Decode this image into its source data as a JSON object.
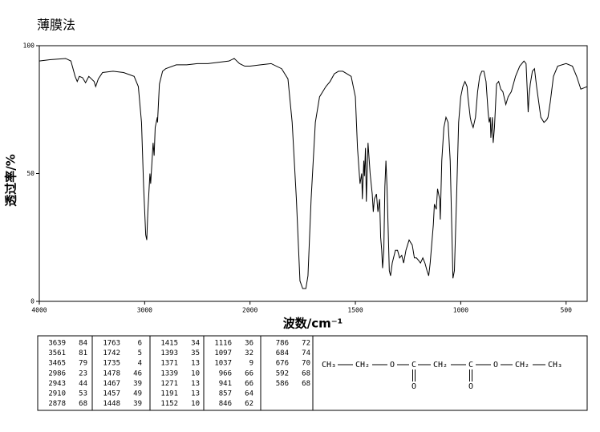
{
  "chart_data": {
    "type": "line",
    "title": "薄膜法",
    "xlabel": "波数/cm⁻¹",
    "ylabel": "透过率/%",
    "x": [
      4000,
      3900,
      3750,
      3700,
      3660,
      3640,
      3620,
      3590,
      3561,
      3530,
      3480,
      3465,
      3440,
      3400,
      3300,
      3200,
      3100,
      3060,
      3030,
      3010,
      2990,
      2980,
      2970,
      2950,
      2943,
      2930,
      2920,
      2910,
      2900,
      2880,
      2878,
      2860,
      2830,
      2800,
      2700,
      2600,
      2500,
      2400,
      2300,
      2200,
      2150,
      2100,
      2050,
      2000,
      1950,
      1900,
      1850,
      1820,
      1800,
      1780,
      1763,
      1750,
      1742,
      1735,
      1725,
      1710,
      1690,
      1670,
      1640,
      1620,
      1600,
      1580,
      1560,
      1540,
      1520,
      1500,
      1490,
      1478,
      1470,
      1467,
      1460,
      1457,
      1452,
      1448,
      1440,
      1430,
      1420,
      1415,
      1410,
      1400,
      1393,
      1385,
      1380,
      1375,
      1371,
      1365,
      1360,
      1355,
      1350,
      1345,
      1339,
      1333,
      1325,
      1310,
      1300,
      1290,
      1280,
      1271,
      1260,
      1245,
      1230,
      1220,
      1210,
      1200,
      1191,
      1180,
      1170,
      1160,
      1152,
      1145,
      1130,
      1125,
      1116,
      1110,
      1100,
      1097,
      1090,
      1080,
      1070,
      1060,
      1050,
      1040,
      1037,
      1030,
      1020,
      1010,
      1000,
      990,
      980,
      970,
      966,
      955,
      950,
      941,
      930,
      920,
      910,
      900,
      890,
      880,
      870,
      865,
      860,
      857,
      850,
      846,
      840,
      830,
      820,
      810,
      800,
      786,
      775,
      760,
      740,
      720,
      700,
      690,
      684,
      680,
      676,
      670,
      660,
      650,
      640,
      620,
      605,
      592,
      586,
      575,
      560,
      540,
      500,
      470,
      450,
      430,
      400
    ],
    "values": [
      94,
      94.5,
      95,
      94,
      88,
      86,
      88,
      87.5,
      85.5,
      88,
      86,
      84,
      87,
      89.5,
      90,
      89.5,
      88,
      84,
      70,
      45,
      26,
      24,
      35,
      50,
      46,
      55,
      62,
      57,
      68,
      72,
      70,
      85,
      90,
      91,
      92.5,
      92.5,
      93,
      93,
      93.5,
      94,
      95,
      93,
      92,
      92,
      92.5,
      93,
      91,
      87,
      70,
      40,
      8,
      5,
      5,
      5,
      10,
      40,
      70,
      80,
      84,
      86,
      89,
      90,
      90,
      89,
      88,
      80,
      60,
      46,
      50,
      40,
      55,
      49,
      60,
      39,
      62,
      50,
      42,
      35,
      40,
      42,
      35,
      40,
      25,
      20,
      13,
      20,
      45,
      55,
      45,
      30,
      12,
      10,
      15,
      20,
      20,
      17,
      18,
      15,
      20,
      24,
      22,
      17,
      17,
      16,
      15,
      17,
      15,
      12,
      10,
      15,
      30,
      38,
      36,
      44,
      40,
      32,
      55,
      68,
      72,
      70,
      55,
      20,
      9,
      12,
      40,
      70,
      80,
      84,
      86,
      84,
      80,
      72,
      70,
      68,
      72,
      82,
      88,
      90,
      90,
      86,
      74,
      70,
      72,
      64,
      72,
      62,
      68,
      85,
      86,
      83,
      82,
      77,
      80,
      82,
      88,
      92,
      94,
      93,
      82,
      74,
      80,
      85,
      90,
      91,
      84,
      72,
      70,
      71,
      72,
      78,
      88,
      92,
      93,
      92,
      88,
      83,
      84
    ],
    "color": "#000000",
    "xlim": [
      4000,
      400
    ],
    "ylim": [
      0,
      100
    ],
    "xticks": [
      4000,
      3000,
      2000,
      1500,
      1000,
      500
    ],
    "yticks": [
      0,
      50,
      100
    ]
  },
  "peak_table": {
    "columns": [
      [
        [
          3639,
          84
        ],
        [
          3561,
          81
        ],
        [
          3465,
          79
        ],
        [
          2986,
          23
        ],
        [
          2943,
          44
        ],
        [
          2910,
          53
        ],
        [
          2878,
          68
        ]
      ],
      [
        [
          1763,
          6
        ],
        [
          1742,
          5
        ],
        [
          1735,
          4
        ],
        [
          1478,
          46
        ],
        [
          1467,
          39
        ],
        [
          1457,
          49
        ],
        [
          1448,
          39
        ]
      ],
      [
        [
          1415,
          34
        ],
        [
          1393,
          35
        ],
        [
          1371,
          13
        ],
        [
          1339,
          10
        ],
        [
          1271,
          13
        ],
        [
          1191,
          13
        ],
        [
          1152,
          10
        ]
      ],
      [
        [
          1116,
          36
        ],
        [
          1097,
          32
        ],
        [
          1037,
          9
        ],
        [
          966,
          66
        ],
        [
          941,
          66
        ],
        [
          857,
          64
        ],
        [
          846,
          62
        ]
      ],
      [
        [
          786,
          72
        ],
        [
          684,
          74
        ],
        [
          676,
          70
        ],
        [
          592,
          68
        ],
        [
          586,
          68
        ]
      ]
    ]
  },
  "structure": {
    "atoms": [
      "CH₃",
      "CH₂",
      "O",
      "C",
      "O",
      "CH₂",
      "C",
      "O",
      "O",
      "CH₂",
      "CH₃"
    ]
  }
}
